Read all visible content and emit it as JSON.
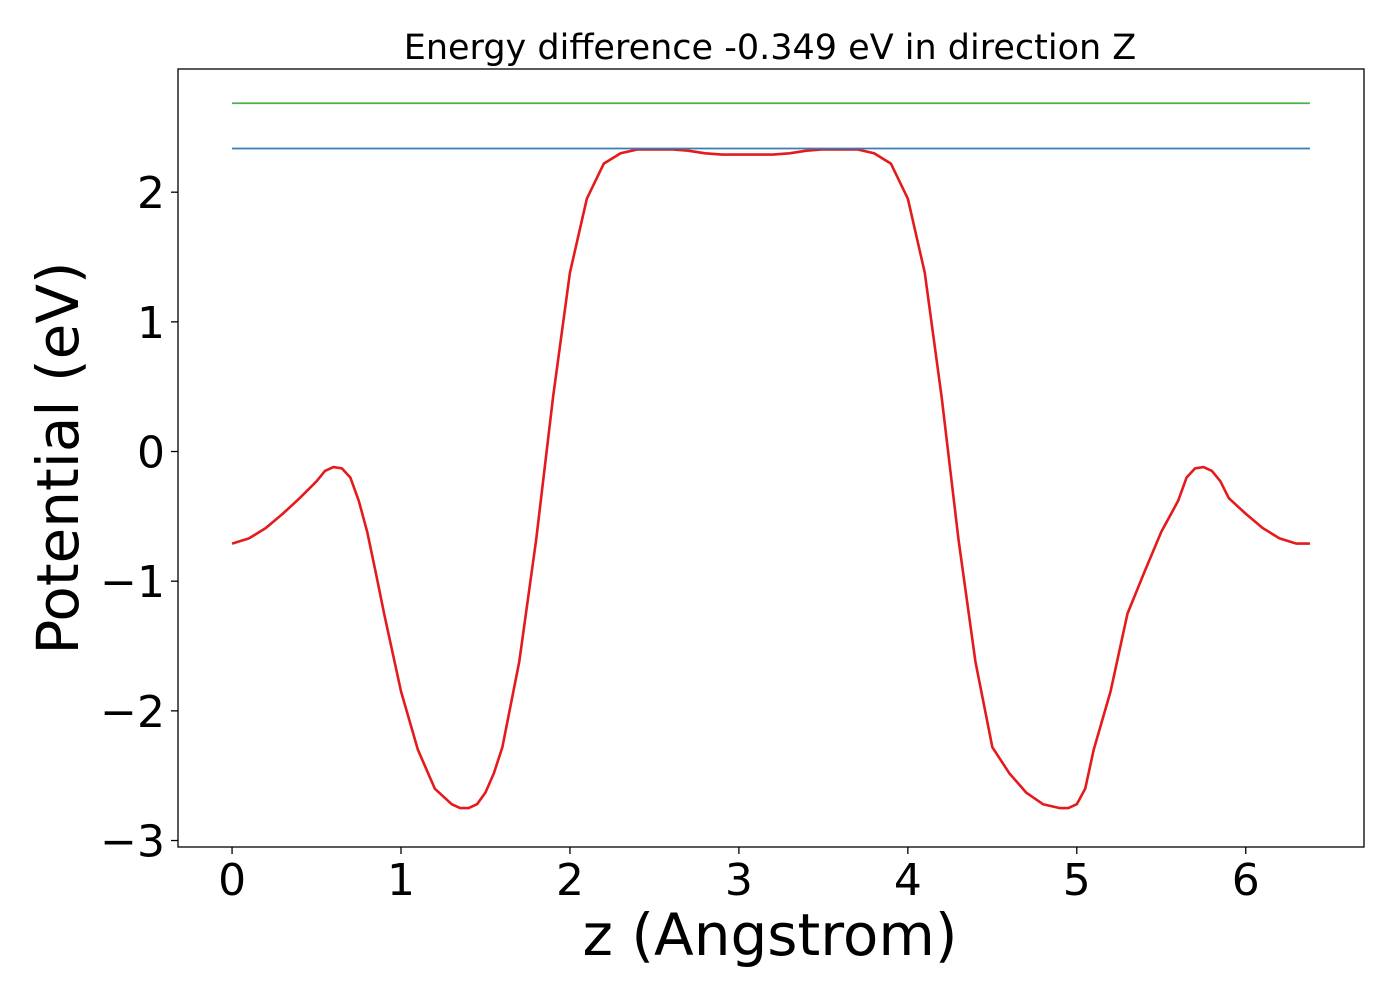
{
  "chart_data": {
    "type": "line",
    "title": "Energy difference -0.349 eV in direction Z",
    "xlabel": "z (Angstrom)",
    "ylabel": "Potential (eV)",
    "xlim": [
      -0.32,
      6.7
    ],
    "ylim": [
      -3.05,
      2.95
    ],
    "xticks": [
      0,
      1,
      2,
      3,
      4,
      5,
      6
    ],
    "xtick_labels": [
      "0",
      "1",
      "2",
      "3",
      "4",
      "5",
      "6"
    ],
    "yticks": [
      -3,
      -2,
      -1,
      0,
      1,
      2
    ],
    "ytick_labels": [
      "−3",
      "−2",
      "−1",
      "0",
      "1",
      "2"
    ],
    "grid": false,
    "series": [
      {
        "color": "#e41a1c",
        "x": [
          0.0,
          0.1,
          0.2,
          0.3,
          0.4,
          0.5,
          0.55,
          0.6,
          0.65,
          0.7,
          0.75,
          0.8,
          0.85,
          0.9,
          1.0,
          1.1,
          1.2,
          1.3,
          1.35,
          1.4,
          1.45,
          1.5,
          1.55,
          1.6,
          1.7,
          1.8,
          1.9,
          2.0,
          2.1,
          2.2,
          2.3,
          2.4,
          2.5,
          2.6,
          2.7,
          2.8,
          2.9,
          3.0,
          3.1,
          3.2,
          3.3,
          3.4,
          3.5,
          3.6,
          3.7,
          3.8,
          3.9,
          4.0,
          4.1,
          4.2,
          4.3,
          4.4,
          4.5,
          4.6,
          4.7,
          4.8,
          4.9,
          4.95,
          5.0,
          5.05,
          5.1,
          5.2,
          5.3,
          5.4,
          5.5,
          5.6,
          5.65,
          5.7,
          5.75,
          5.8,
          5.85,
          5.9,
          6.0,
          6.1,
          6.2,
          6.3,
          6.38
        ],
        "y": [
          -0.71,
          -0.67,
          -0.59,
          -0.48,
          -0.36,
          -0.23,
          -0.15,
          -0.12,
          -0.13,
          -0.2,
          -0.38,
          -0.62,
          -0.93,
          -1.25,
          -1.85,
          -2.3,
          -2.6,
          -2.72,
          -2.75,
          -2.75,
          -2.72,
          -2.63,
          -2.48,
          -2.28,
          -1.62,
          -0.68,
          0.42,
          1.38,
          1.95,
          2.22,
          2.3,
          2.33,
          2.33,
          2.33,
          2.32,
          2.3,
          2.29,
          2.29,
          2.29,
          2.29,
          2.3,
          2.32,
          2.33,
          2.33,
          2.33,
          2.3,
          2.22,
          1.95,
          1.38,
          0.42,
          -0.68,
          -1.62,
          -2.28,
          -2.48,
          -2.63,
          -2.72,
          -2.75,
          -2.75,
          -2.72,
          -2.6,
          -2.3,
          -1.85,
          -1.25,
          -0.93,
          -0.62,
          -0.38,
          -0.2,
          -0.13,
          -0.12,
          -0.15,
          -0.23,
          -0.36,
          -0.48,
          -0.59,
          -0.67,
          -0.71,
          -0.71
        ]
      },
      {
        "color": "#377eb8",
        "x": [
          0.0,
          6.38
        ],
        "y": [
          2.337,
          2.337
        ]
      },
      {
        "color": "#4daf4a",
        "x": [
          0.0,
          6.38
        ],
        "y": [
          2.686,
          2.686
        ]
      }
    ]
  }
}
